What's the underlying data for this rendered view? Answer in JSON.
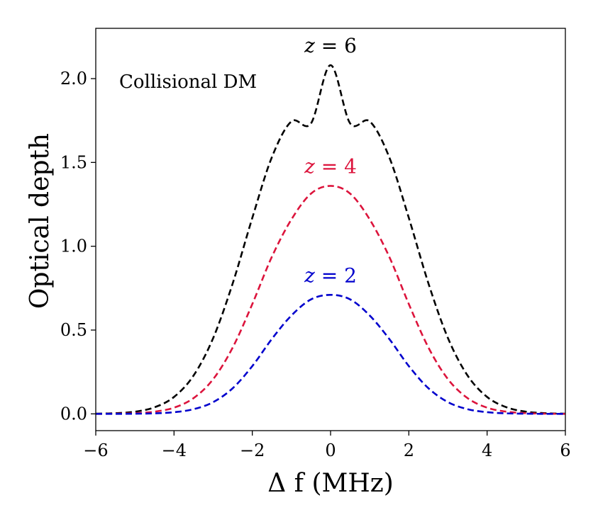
{
  "chart_data": {
    "type": "line",
    "title": "",
    "xlabel": "Δ f (MHz)",
    "ylabel": "Optical depth",
    "xlim": [
      -6,
      6
    ],
    "ylim": [
      -0.1,
      2.3
    ],
    "xticks": [
      -6,
      -4,
      -2,
      0,
      2,
      4,
      6
    ],
    "xtick_labels": [
      "−6",
      "−4",
      "−2",
      "0",
      "2",
      "4",
      "6"
    ],
    "yticks": [
      0.0,
      0.5,
      1.0,
      1.5,
      2.0
    ],
    "ytick_labels": [
      "0.0",
      "0.5",
      "1.0",
      "1.5",
      "2.0"
    ],
    "grid": false,
    "annotation": "Collisional DM",
    "series": [
      {
        "name": "z = 6",
        "label_var": "z",
        "label_rest": " = 6",
        "color": "#000000",
        "linestyle": "dashed",
        "x": [
          -6,
          -5.5,
          -5,
          -4.5,
          -4,
          -3.5,
          -3,
          -2.5,
          -2,
          -1.5,
          -1,
          -0.5,
          0,
          0.5,
          1,
          1.5,
          2,
          2.5,
          3,
          3.5,
          4,
          4.5,
          5,
          5.5,
          6
        ],
        "values": [
          0.001,
          0.004,
          0.013,
          0.039,
          0.101,
          0.229,
          0.452,
          0.779,
          1.169,
          1.531,
          1.745,
          1.733,
          2.08,
          1.733,
          1.745,
          1.531,
          1.169,
          0.779,
          0.452,
          0.229,
          0.101,
          0.039,
          0.013,
          0.004,
          0.001
        ]
      },
      {
        "name": "z = 4",
        "label_var": "z",
        "label_rest": " = 4",
        "color": "#dc143c",
        "linestyle": "dashed",
        "x": [
          -6,
          -5.5,
          -5,
          -4.5,
          -4,
          -3.5,
          -3,
          -2.5,
          -2,
          -1.5,
          -1,
          -0.5,
          0,
          0.5,
          1,
          1.5,
          2,
          2.5,
          3,
          3.5,
          4,
          4.5,
          5,
          5.5,
          6
        ],
        "values": [
          0.0,
          0.001,
          0.004,
          0.013,
          0.037,
          0.094,
          0.207,
          0.396,
          0.655,
          0.937,
          1.16,
          1.314,
          1.36,
          1.314,
          1.16,
          0.937,
          0.655,
          0.396,
          0.207,
          0.094,
          0.037,
          0.013,
          0.004,
          0.001,
          0.0
        ]
      },
      {
        "name": "z = 2",
        "label_var": "z",
        "label_rest": " = 2",
        "color": "#0000cd",
        "linestyle": "dashed",
        "x": [
          -6,
          -5.5,
          -5,
          -4.5,
          -4,
          -3.5,
          -3,
          -2.5,
          -2,
          -1.5,
          -1,
          -0.5,
          0,
          0.5,
          1,
          1.5,
          2,
          2.5,
          3,
          3.5,
          4,
          4.5,
          5,
          5.5,
          6
        ],
        "values": [
          0.0,
          0.0,
          0.001,
          0.003,
          0.01,
          0.028,
          0.07,
          0.153,
          0.285,
          0.447,
          0.587,
          0.683,
          0.71,
          0.683,
          0.587,
          0.447,
          0.285,
          0.153,
          0.07,
          0.028,
          0.01,
          0.003,
          0.001,
          0.0,
          0.0
        ]
      }
    ]
  }
}
